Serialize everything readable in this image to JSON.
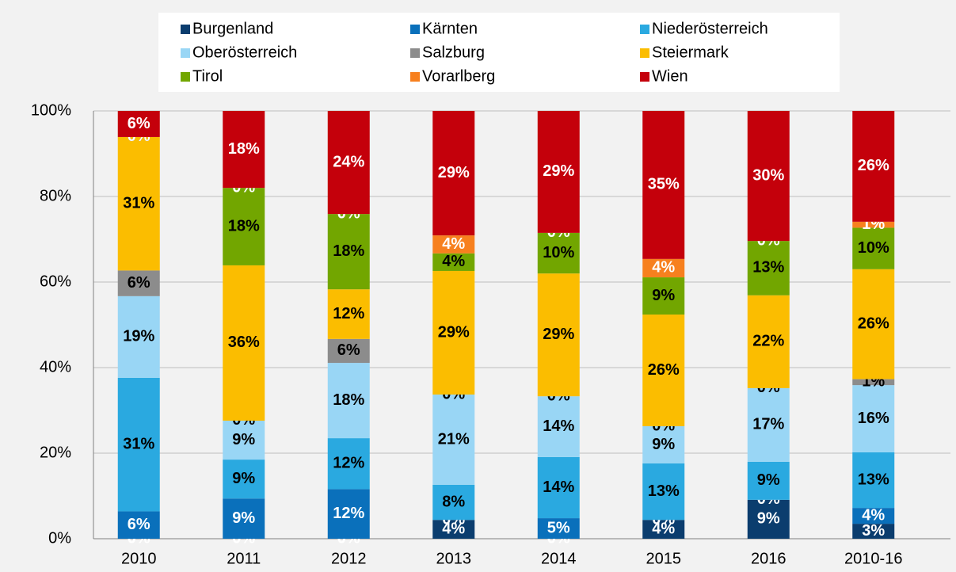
{
  "chart_data": {
    "type": "stacked_bar",
    "categories": [
      "2010",
      "2011",
      "2012",
      "2013",
      "2014",
      "2015",
      "2016",
      "2010-16"
    ],
    "ylim": [
      0,
      100
    ],
    "yticks": [
      {
        "value": 0,
        "label": "0%"
      },
      {
        "value": 20,
        "label": "20%"
      },
      {
        "value": 40,
        "label": "40%"
      },
      {
        "value": 60,
        "label": "60%"
      },
      {
        "value": 80,
        "label": "80%"
      },
      {
        "value": 100,
        "label": "100%"
      }
    ],
    "grid": true,
    "legend": "top",
    "series": [
      {
        "name": "Burgenland",
        "color": "#0b3d6e",
        "label_color": "#ffffff",
        "values": [
          0,
          0,
          0,
          4.4,
          0,
          4.4,
          9.1,
          3.5
        ],
        "value_labels": [
          "0%",
          "0%",
          "0%",
          "4%",
          "0%",
          "4%",
          "9%",
          "3%"
        ]
      },
      {
        "name": "Kärnten",
        "color": "#0a70bb",
        "label_color": "#ffffff",
        "values": [
          6.4,
          9.4,
          11.6,
          0,
          4.8,
          0,
          0,
          3.7
        ],
        "value_labels": [
          "6%",
          "9%",
          "12%",
          "0%",
          "5%",
          "0%",
          "0%",
          "4%"
        ]
      },
      {
        "name": "Niederösterreich",
        "color": "#2aa9e0",
        "label_color": "#000000",
        "values": [
          31.2,
          9.1,
          11.9,
          8.2,
          14.3,
          13.2,
          8.9,
          13.0
        ],
        "value_labels": [
          "31%",
          "9%",
          "12%",
          "8%",
          "14%",
          "13%",
          "9%",
          "13%"
        ]
      },
      {
        "name": "Oberösterreich",
        "color": "#99d6f5",
        "label_color": "#000000",
        "values": [
          19.1,
          9.1,
          17.6,
          21.1,
          14.2,
          8.7,
          17.2,
          15.7
        ],
        "value_labels": [
          "19%",
          "9%",
          "18%",
          "21%",
          "14%",
          "9%",
          "17%",
          "16%"
        ]
      },
      {
        "name": "Salzburg",
        "color": "#8c8c8c",
        "label_color": "#000000",
        "values": [
          6.0,
          0,
          5.6,
          0,
          0,
          0,
          0,
          1.4
        ],
        "value_labels": [
          "6%",
          "0%",
          "6%",
          "0%",
          "0%",
          "0%",
          "0%",
          "1%"
        ]
      },
      {
        "name": "Steiermark",
        "color": "#fbbd00",
        "label_color": "#000000",
        "values": [
          31.2,
          36.3,
          11.6,
          28.9,
          28.7,
          26.1,
          21.7,
          25.7
        ],
        "value_labels": [
          "31%",
          "36%",
          "12%",
          "29%",
          "29%",
          "26%",
          "22%",
          "26%"
        ]
      },
      {
        "name": "Tirol",
        "color": "#72a600",
        "label_color": "#000000",
        "values": [
          0,
          18.1,
          17.6,
          4.1,
          9.5,
          8.7,
          12.7,
          9.7
        ],
        "value_labels": [
          "0%",
          "18%",
          "18%",
          "4%",
          "10%",
          "9%",
          "13%",
          "10%"
        ]
      },
      {
        "name": "Vorarlberg",
        "color": "#f7801e",
        "label_color": "#ffffff",
        "values": [
          0,
          0,
          0,
          4.2,
          0,
          4.3,
          0,
          1.4
        ],
        "value_labels": [
          "0%",
          "0%",
          "0%",
          "4%",
          "0%",
          "4%",
          "0%",
          "1%"
        ]
      },
      {
        "name": "Wien",
        "color": "#c4000b",
        "label_color": "#ffffff",
        "values": [
          6.1,
          18.0,
          24.1,
          29.1,
          28.5,
          34.6,
          30.4,
          25.9
        ],
        "value_labels": [
          "6%",
          "18%",
          "24%",
          "29%",
          "29%",
          "35%",
          "30%",
          "26%"
        ]
      }
    ]
  }
}
